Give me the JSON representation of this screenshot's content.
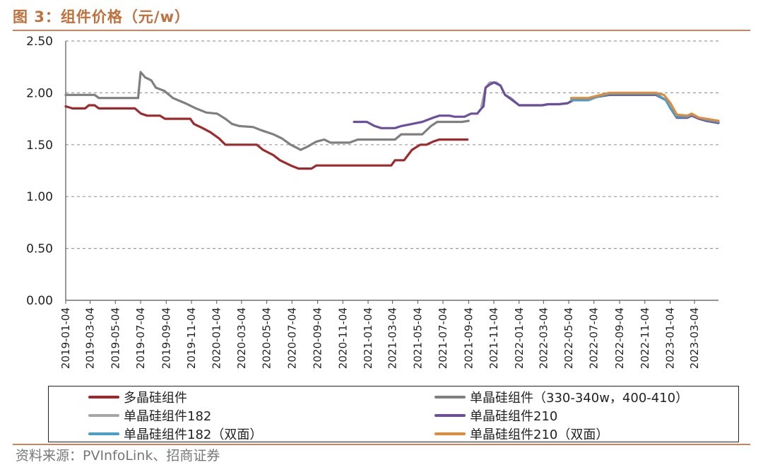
{
  "title": "图 3：组件价格（元/w）",
  "source": "资料来源：PVInfoLink、招商证券",
  "chart_data": {
    "type": "line",
    "ylim": [
      0,
      2.5
    ],
    "yticks": [
      "0.00",
      "0.50",
      "1.00",
      "1.50",
      "2.00",
      "2.50"
    ],
    "xlim": [
      "2019-01-04",
      "2023-05-01"
    ],
    "xticks": [
      "2019-01-04",
      "2019-03-04",
      "2019-05-04",
      "2019-07-04",
      "2019-09-04",
      "2019-11-04",
      "2020-01-04",
      "2020-03-04",
      "2020-05-04",
      "2020-07-04",
      "2020-09-04",
      "2020-11-04",
      "2021-01-04",
      "2021-03-04",
      "2021-05-04",
      "2021-07-04",
      "2021-09-04",
      "2021-11-04",
      "2022-01-04",
      "2022-03-04",
      "2022-05-04",
      "2022-07-04",
      "2022-09-04",
      "2022-11-04",
      "2023-01-04",
      "2023-03-04"
    ],
    "grid": true,
    "series": [
      {
        "name": "多晶硅组件",
        "color": "#9e2a2b",
        "points": [
          [
            "2019-01-04",
            1.87
          ],
          [
            "2019-01-20",
            1.85
          ],
          [
            "2019-02-20",
            1.85
          ],
          [
            "2019-03-01",
            1.88
          ],
          [
            "2019-03-15",
            1.88
          ],
          [
            "2019-03-25",
            1.85
          ],
          [
            "2019-06-20",
            1.85
          ],
          [
            "2019-07-05",
            1.8
          ],
          [
            "2019-07-20",
            1.78
          ],
          [
            "2019-08-20",
            1.78
          ],
          [
            "2019-09-01",
            1.75
          ],
          [
            "2019-11-01",
            1.75
          ],
          [
            "2019-11-10",
            1.7
          ],
          [
            "2019-12-01",
            1.66
          ],
          [
            "2019-12-20",
            1.62
          ],
          [
            "2020-01-10",
            1.56
          ],
          [
            "2020-01-25",
            1.5
          ],
          [
            "2020-04-10",
            1.5
          ],
          [
            "2020-04-25",
            1.45
          ],
          [
            "2020-05-20",
            1.4
          ],
          [
            "2020-06-05",
            1.35
          ],
          [
            "2020-07-01",
            1.3
          ],
          [
            "2020-07-20",
            1.27
          ],
          [
            "2020-08-20",
            1.27
          ],
          [
            "2020-09-01",
            1.3
          ],
          [
            "2021-03-01",
            1.3
          ],
          [
            "2021-03-10",
            1.35
          ],
          [
            "2021-04-01",
            1.35
          ],
          [
            "2021-04-20",
            1.45
          ],
          [
            "2021-05-10",
            1.5
          ],
          [
            "2021-05-25",
            1.5
          ],
          [
            "2021-06-10",
            1.53
          ],
          [
            "2021-06-25",
            1.55
          ],
          [
            "2021-09-01",
            1.55
          ]
        ]
      },
      {
        "name": "单晶硅组件（330-340w，400-410）",
        "color": "#7f7f7f",
        "points": [
          [
            "2019-01-04",
            1.98
          ],
          [
            "2019-03-15",
            1.98
          ],
          [
            "2019-03-25",
            1.95
          ],
          [
            "2019-06-28",
            1.95
          ],
          [
            "2019-07-04",
            2.2
          ],
          [
            "2019-07-15",
            2.15
          ],
          [
            "2019-07-30",
            2.12
          ],
          [
            "2019-08-10",
            2.05
          ],
          [
            "2019-08-30",
            2.02
          ],
          [
            "2019-09-20",
            1.95
          ],
          [
            "2019-10-20",
            1.9
          ],
          [
            "2019-11-15",
            1.85
          ],
          [
            "2019-12-10",
            1.81
          ],
          [
            "2020-01-05",
            1.8
          ],
          [
            "2020-01-25",
            1.75
          ],
          [
            "2020-02-10",
            1.7
          ],
          [
            "2020-02-28",
            1.68
          ],
          [
            "2020-04-01",
            1.67
          ],
          [
            "2020-04-20",
            1.64
          ],
          [
            "2020-05-20",
            1.6
          ],
          [
            "2020-06-10",
            1.56
          ],
          [
            "2020-07-01",
            1.5
          ],
          [
            "2020-07-25",
            1.45
          ],
          [
            "2020-08-10",
            1.48
          ],
          [
            "2020-09-01",
            1.53
          ],
          [
            "2020-09-20",
            1.55
          ],
          [
            "2020-10-05",
            1.52
          ],
          [
            "2020-11-20",
            1.52
          ],
          [
            "2020-12-10",
            1.55
          ],
          [
            "2021-03-10",
            1.55
          ],
          [
            "2021-03-25",
            1.6
          ],
          [
            "2021-05-15",
            1.6
          ],
          [
            "2021-06-05",
            1.68
          ],
          [
            "2021-06-20",
            1.72
          ],
          [
            "2021-08-20",
            1.72
          ],
          [
            "2021-09-04",
            1.73
          ]
        ]
      },
      {
        "name": "单晶硅组件182",
        "color": "#a6a6a6",
        "points": [
          [
            "2021-10-05",
            1.87
          ],
          [
            "2021-10-15",
            2.05
          ],
          [
            "2021-10-25",
            2.1
          ],
          [
            "2021-11-10",
            2.1
          ],
          [
            "2021-11-20",
            2.07
          ],
          [
            "2021-12-01",
            1.98
          ],
          [
            "2021-12-15",
            1.95
          ],
          [
            "2022-01-04",
            1.88
          ],
          [
            "2022-03-01",
            1.88
          ],
          [
            "2022-03-15",
            1.89
          ],
          [
            "2022-04-10",
            1.89
          ],
          [
            "2022-05-01",
            1.9
          ],
          [
            "2022-05-15",
            1.93
          ],
          [
            "2022-06-20",
            1.93
          ],
          [
            "2022-07-10",
            1.96
          ],
          [
            "2022-08-10",
            1.98
          ],
          [
            "2022-12-01",
            1.98
          ],
          [
            "2022-12-25",
            1.93
          ],
          [
            "2023-01-05",
            1.85
          ],
          [
            "2023-01-20",
            1.77
          ],
          [
            "2023-02-15",
            1.77
          ],
          [
            "2023-02-25",
            1.79
          ],
          [
            "2023-03-15",
            1.75
          ],
          [
            "2023-04-01",
            1.73
          ],
          [
            "2023-05-01",
            1.71
          ]
        ]
      },
      {
        "name": "单晶硅组件210",
        "color": "#6b4f9c",
        "points": [
          [
            "2020-12-01",
            1.72
          ],
          [
            "2021-01-01",
            1.72
          ],
          [
            "2021-01-20",
            1.68
          ],
          [
            "2021-02-05",
            1.66
          ],
          [
            "2021-03-10",
            1.66
          ],
          [
            "2021-03-25",
            1.68
          ],
          [
            "2021-04-20",
            1.7
          ],
          [
            "2021-05-15",
            1.72
          ],
          [
            "2021-06-10",
            1.76
          ],
          [
            "2021-06-25",
            1.78
          ],
          [
            "2021-07-20",
            1.78
          ],
          [
            "2021-08-01",
            1.77
          ],
          [
            "2021-08-25",
            1.77
          ],
          [
            "2021-09-10",
            1.8
          ],
          [
            "2021-09-25",
            1.8
          ],
          [
            "2021-10-05",
            1.85
          ],
          [
            "2021-10-10",
            1.87
          ],
          [
            "2021-10-15",
            2.05
          ],
          [
            "2021-10-25",
            2.08
          ],
          [
            "2021-11-05",
            2.1
          ],
          [
            "2021-11-20",
            2.07
          ],
          [
            "2021-12-01",
            1.98
          ],
          [
            "2021-12-15",
            1.94
          ],
          [
            "2022-01-04",
            1.88
          ],
          [
            "2022-03-01",
            1.88
          ],
          [
            "2022-03-15",
            1.89
          ],
          [
            "2022-04-10",
            1.89
          ],
          [
            "2022-05-01",
            1.9
          ],
          [
            "2022-05-15",
            1.93
          ],
          [
            "2022-06-20",
            1.93
          ],
          [
            "2022-07-10",
            1.96
          ],
          [
            "2022-08-10",
            1.98
          ],
          [
            "2022-12-01",
            1.98
          ],
          [
            "2022-12-25",
            1.93
          ],
          [
            "2023-01-05",
            1.85
          ],
          [
            "2023-01-20",
            1.76
          ],
          [
            "2023-02-15",
            1.76
          ],
          [
            "2023-02-25",
            1.78
          ],
          [
            "2023-03-15",
            1.75
          ],
          [
            "2023-04-01",
            1.73
          ],
          [
            "2023-05-01",
            1.71
          ]
        ]
      },
      {
        "name": "单晶硅组件182（双面）",
        "color": "#4a9ec7",
        "points": [
          [
            "2022-05-10",
            1.93
          ],
          [
            "2022-06-20",
            1.93
          ],
          [
            "2022-07-10",
            1.96
          ],
          [
            "2022-08-10",
            1.99
          ],
          [
            "2022-12-01",
            1.99
          ],
          [
            "2022-12-25",
            1.93
          ],
          [
            "2023-01-05",
            1.85
          ],
          [
            "2023-01-20",
            1.77
          ],
          [
            "2023-02-15",
            1.77
          ],
          [
            "2023-02-25",
            1.79
          ],
          [
            "2023-03-15",
            1.76
          ],
          [
            "2023-04-01",
            1.74
          ],
          [
            "2023-05-01",
            1.72
          ]
        ]
      },
      {
        "name": "单晶硅组件210（双面）",
        "color": "#e08a3c",
        "points": [
          [
            "2022-05-10",
            1.95
          ],
          [
            "2022-06-20",
            1.95
          ],
          [
            "2022-07-10",
            1.97
          ],
          [
            "2022-08-10",
            2.0
          ],
          [
            "2022-12-01",
            2.0
          ],
          [
            "2022-12-20",
            1.98
          ],
          [
            "2023-01-05",
            1.9
          ],
          [
            "2023-01-20",
            1.79
          ],
          [
            "2023-02-15",
            1.78
          ],
          [
            "2023-02-25",
            1.8
          ],
          [
            "2023-03-15",
            1.76
          ],
          [
            "2023-04-01",
            1.75
          ],
          [
            "2023-05-01",
            1.73
          ]
        ]
      }
    ]
  }
}
